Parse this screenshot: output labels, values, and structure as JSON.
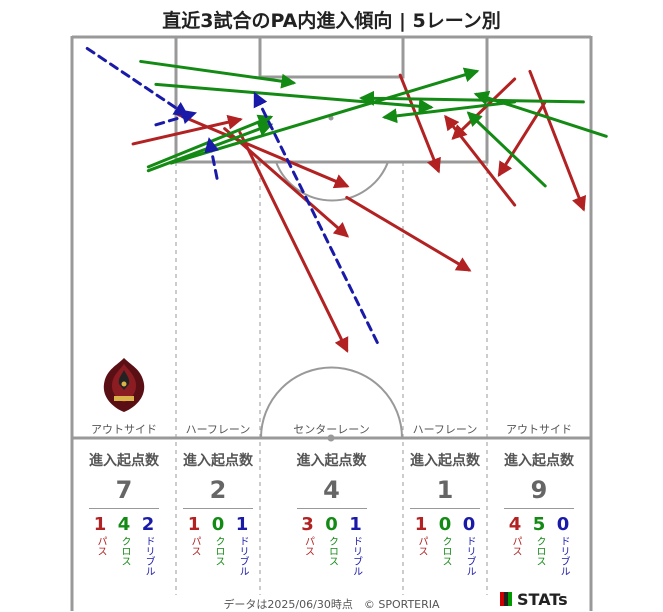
{
  "title": "直近3試合のPA内進入傾向 | 5レーン別",
  "colors": {
    "pass": "#b22222",
    "cross": "#138a13",
    "dribble": "#1a1aa8",
    "lines": "#999999"
  },
  "lanes": [
    {
      "name": "アウトサイド",
      "stat_header": "進入起点数",
      "total": "7",
      "pass": "1",
      "cross": "4",
      "dribble": "2"
    },
    {
      "name": "ハーフレーン",
      "stat_header": "進入起点数",
      "total": "2",
      "pass": "1",
      "cross": "0",
      "dribble": "1"
    },
    {
      "name": "センターレーン",
      "stat_header": "進入起点数",
      "total": "4",
      "pass": "3",
      "cross": "0",
      "dribble": "1"
    },
    {
      "name": "ハーフレーン",
      "stat_header": "進入起点数",
      "total": "1",
      "pass": "1",
      "cross": "0",
      "dribble": "0"
    },
    {
      "name": "アウトサイド",
      "stat_header": "進入起点数",
      "total": "9",
      "pass": "4",
      "cross": "5",
      "dribble": "0"
    }
  ],
  "legend_labels": {
    "pass": "パス",
    "cross": "クロス",
    "dribble": "ドリブル"
  },
  "footer": "データは2025/06/30時点　© SPORTERIA",
  "brand": "STATs",
  "crest_icon": "team-crest-icon",
  "chart_data": {
    "type": "scatter",
    "title": "直近3試合のPA内進入傾向 | 5レーン別",
    "coordinate_system": "pitch-half, x: 0-68 width, y: 0-52.5 depth from goal line",
    "series": [
      {
        "name": "パス",
        "type": "arrow",
        "style": "solid",
        "segments": [
          {
            "from": [
              8,
              14.0
            ],
            "to": [
              22,
              10.8
            ]
          },
          {
            "from": [
              22,
              12.5
            ],
            "to": [
              36,
              41.0
            ]
          },
          {
            "from": [
              14,
              10.2
            ],
            "to": [
              36,
              19.5
            ]
          },
          {
            "from": [
              20,
              12.0
            ],
            "to": [
              36,
              26.0
            ]
          },
          {
            "from": [
              36,
              21.0
            ],
            "to": [
              52,
              30.5
            ]
          },
          {
            "from": [
              58,
              22.0
            ],
            "to": [
              49,
              10.5
            ]
          },
          {
            "from": [
              62,
              8.5
            ],
            "to": [
              56,
              18.0
            ]
          },
          {
            "from": [
              58,
              5.5
            ],
            "to": [
              50,
              13.2
            ]
          },
          {
            "from": [
              60,
              4.5
            ],
            "to": [
              67,
              22.5
            ]
          },
          {
            "from": [
              43,
              5.0
            ],
            "to": [
              48,
              17.5
            ]
          }
        ]
      },
      {
        "name": "クロス",
        "type": "arrow",
        "style": "solid",
        "segments": [
          {
            "from": [
              9,
              3.2
            ],
            "to": [
              29,
              6.0
            ]
          },
          {
            "from": [
              10,
              17.0
            ],
            "to": [
              26,
              10.5
            ]
          },
          {
            "from": [
              10,
              17.5
            ],
            "to": [
              26,
              11.5
            ]
          },
          {
            "from": [
              11,
              6.2
            ],
            "to": [
              47,
              9.2
            ]
          },
          {
            "from": [
              13,
              16.5
            ],
            "to": [
              53,
              4.5
            ]
          },
          {
            "from": [
              58,
              8.5
            ],
            "to": [
              41,
              10.5
            ]
          },
          {
            "from": [
              67,
              8.5
            ],
            "to": [
              38,
              8.0
            ]
          },
          {
            "from": [
              70,
              13.0
            ],
            "to": [
              53,
              7.5
            ]
          },
          {
            "from": [
              62,
              19.5
            ],
            "to": [
              52,
              10.0
            ]
          }
        ]
      },
      {
        "name": "ドリブル",
        "type": "arrow",
        "style": "dashed",
        "segments": [
          {
            "from": [
              2,
              1.5
            ],
            "to": [
              15,
              10.2
            ]
          },
          {
            "from": [
              11,
              11.5
            ],
            "to": [
              16,
              10.0
            ]
          },
          {
            "from": [
              19,
              18.5
            ],
            "to": [
              18,
              13.5
            ]
          },
          {
            "from": [
              40,
              40.0
            ],
            "to": [
              24,
              7.5
            ]
          }
        ]
      }
    ]
  }
}
